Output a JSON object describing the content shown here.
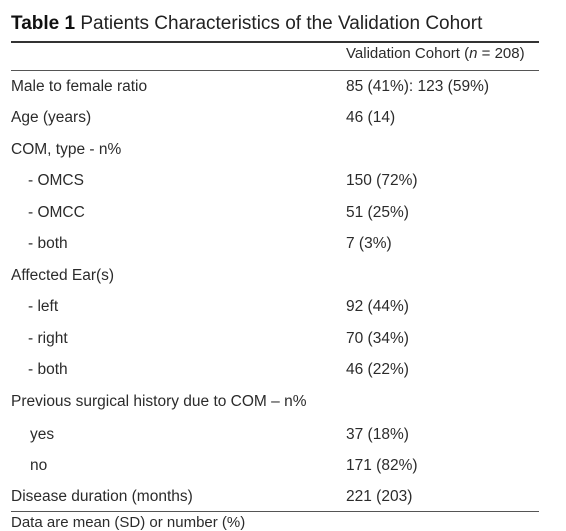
{
  "caption": {
    "label": "Table 1",
    "text": "Patients Characteristics of the Validation Cohort"
  },
  "header": {
    "col2_prefix": "Validation Cohort (",
    "col2_n": "n",
    "col2_suffix": " = 208)"
  },
  "rows": [
    {
      "label": "Male to female ratio",
      "value": "85 (41%): 123 (59%)"
    },
    {
      "label": "Age (years)",
      "value": "46 (14)"
    },
    {
      "label": "COM, type - n%",
      "value": ""
    },
    {
      "label": "- OMCS",
      "value": "150 (72%)"
    },
    {
      "label": "- OMCC",
      "value": "51 (25%)"
    },
    {
      "label": "- both",
      "value": "7 (3%)"
    },
    {
      "label": "Affected Ear(s)",
      "value": ""
    },
    {
      "label": "- left",
      "value": "92 (44%)"
    },
    {
      "label": "- right",
      "value": "70 (34%)"
    },
    {
      "label": "- both",
      "value": "46 (22%)"
    },
    {
      "label": "Previous surgical history due to COM – n%",
      "value": ""
    },
    {
      "label": "yes",
      "value": "37 (18%)"
    },
    {
      "label": "no",
      "value": "171 (82%)"
    },
    {
      "label": "Disease duration (months)",
      "value": "221 (203)"
    }
  ],
  "footnote": "Data are mean (SD) or number (%)"
}
